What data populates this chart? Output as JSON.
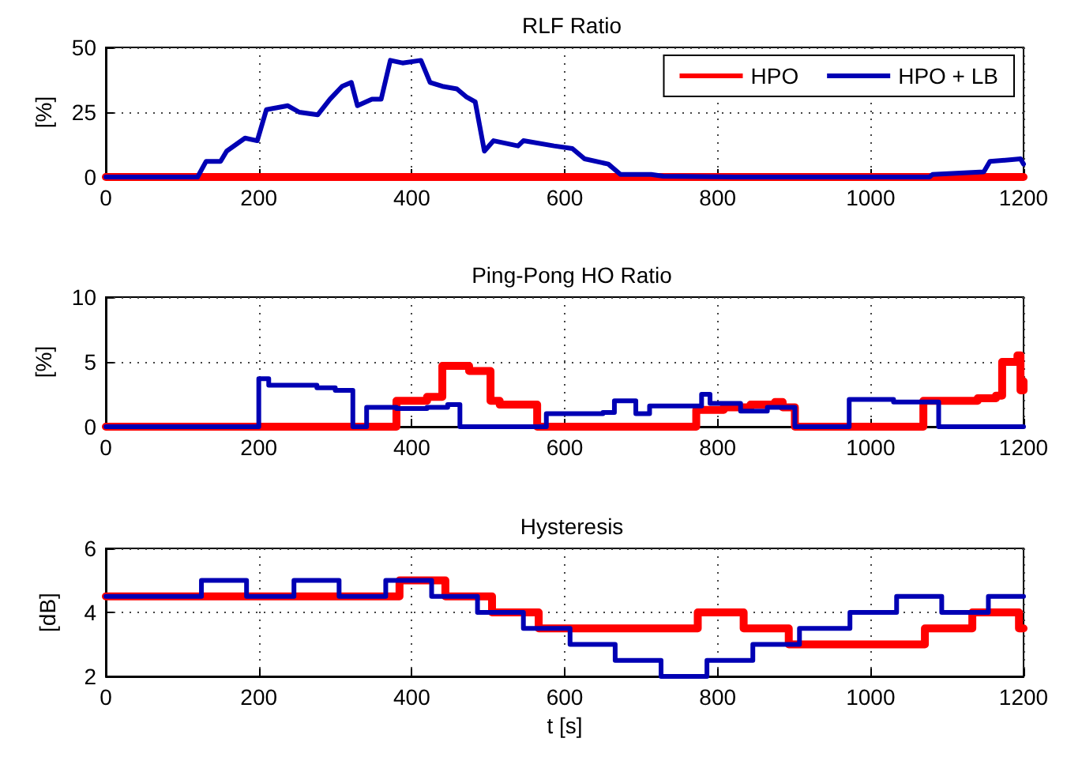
{
  "chart_data": [
    {
      "type": "line",
      "title": "RLF Ratio",
      "ylabel": "[%]",
      "xlim": [
        0,
        1200
      ],
      "xticks": [
        0,
        200,
        400,
        600,
        800,
        1000,
        1200
      ],
      "ylim": [
        0,
        50
      ],
      "yticks": [
        0,
        25,
        50
      ],
      "grid": true,
      "legend": "top right",
      "marker": "none",
      "line_style": "solid",
      "series": [
        {
          "name": "HPO",
          "color": "#ff0000",
          "x": [
            0,
            1200
          ],
          "values": [
            0,
            0
          ]
        },
        {
          "name": "HPO + LB",
          "color": "#0000b4",
          "x": [
            0,
            120,
            131,
            150,
            158,
            182,
            198,
            210,
            238,
            253,
            277,
            293,
            309,
            321,
            329,
            348,
            360,
            372,
            388,
            412,
            424,
            440,
            459,
            471,
            483,
            495,
            507,
            539,
            546,
            586,
            610,
            626,
            657,
            673,
            713,
            729,
            824,
            1077,
            1081,
            1148,
            1156,
            1196,
            1200
          ],
          "values": [
            0,
            0,
            6,
            6,
            10,
            15,
            14,
            26,
            27.5,
            25,
            24,
            30,
            35,
            36.5,
            27.5,
            30,
            30,
            45,
            44,
            45,
            36.5,
            35,
            34,
            31,
            29,
            10,
            14,
            12,
            14,
            12,
            11,
            7,
            5,
            1,
            1,
            0.3,
            0,
            0,
            1,
            2,
            6,
            7,
            5
          ]
        }
      ]
    },
    {
      "type": "step",
      "title": "Ping-Pong HO Ratio",
      "ylabel": "[%]",
      "xlim": [
        0,
        1200
      ],
      "xticks": [
        0,
        200,
        400,
        600,
        800,
        1000,
        1200
      ],
      "ylim": [
        0,
        10
      ],
      "yticks": [
        0,
        5,
        10
      ],
      "grid": true,
      "legend": false,
      "marker": "none",
      "line_style": "solid",
      "series": [
        {
          "color": "#ff0000",
          "x": [
            0,
            380,
            420,
            440,
            475,
            503,
            515,
            564,
            772,
            808,
            843,
            875,
            885,
            901,
            1069,
            1140,
            1164,
            1172,
            1192,
            1196,
            1200
          ],
          "values": [
            0,
            2.0,
            2.3,
            4.7,
            4.3,
            2.0,
            1.7,
            0,
            1.3,
            1.5,
            1.7,
            1.9,
            1.5,
            0,
            2.0,
            2.2,
            2.4,
            5.0,
            5.5,
            2.8,
            3.5
          ]
        },
        {
          "color": "#0000b4",
          "x": [
            0,
            200,
            213,
            276,
            300,
            323,
            341,
            380,
            420,
            447,
            463,
            576,
            650,
            665,
            693,
            711,
            779,
            790,
            830,
            865,
            901,
            972,
            1030,
            1089,
            1200
          ],
          "values": [
            0,
            3.7,
            3.2,
            3.0,
            2.8,
            0,
            1.5,
            1.4,
            1.5,
            1.7,
            0,
            1.0,
            1.1,
            2.0,
            1.0,
            1.6,
            2.5,
            1.8,
            1.2,
            1.5,
            0,
            2.1,
            1.9,
            0,
            0
          ]
        }
      ]
    },
    {
      "type": "step",
      "title": "Hysteresis",
      "ylabel": "[dB]",
      "xlabel": "t [s]",
      "xlim": [
        0,
        1200
      ],
      "xticks": [
        0,
        200,
        400,
        600,
        800,
        1000,
        1200
      ],
      "ylim": [
        2,
        6
      ],
      "yticks": [
        2,
        4,
        6
      ],
      "grid": true,
      "legend": false,
      "marker": "none",
      "line_style": "solid",
      "series": [
        {
          "color": "#ff0000",
          "x": [
            0,
            384,
            444,
            505,
            566,
            774,
            834,
            893,
            1071,
            1133,
            1194,
            1200
          ],
          "values": [
            4.5,
            5,
            4.5,
            4,
            3.5,
            4,
            3.5,
            3,
            3.5,
            4,
            3.5,
            3.5
          ]
        },
        {
          "color": "#0000b4",
          "x": [
            0,
            125,
            184,
            246,
            305,
            366,
            426,
            486,
            546,
            607,
            666,
            726,
            786,
            846,
            907,
            973,
            1034,
            1093,
            1154,
            1200
          ],
          "values": [
            4.5,
            5,
            4.5,
            5,
            4.5,
            5,
            4.5,
            4,
            3.5,
            3,
            2.5,
            2,
            2.5,
            3,
            3.5,
            4,
            4.5,
            4,
            4.5,
            4.5
          ]
        }
      ]
    }
  ]
}
